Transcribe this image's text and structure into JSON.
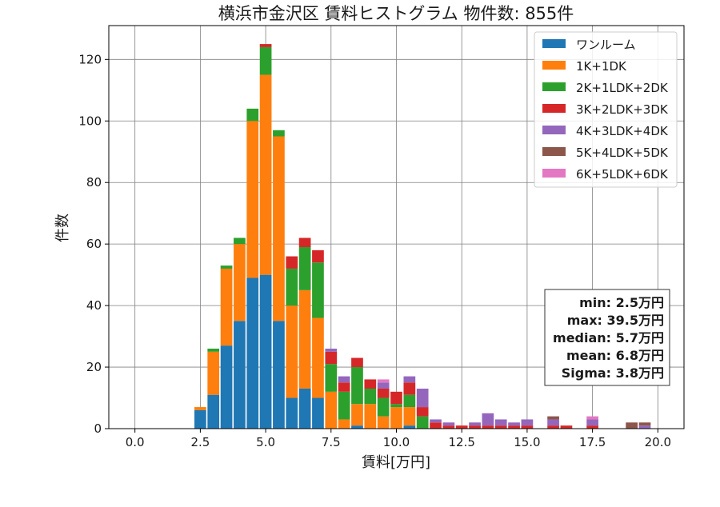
{
  "chart_data": {
    "type": "bar",
    "stacked": true,
    "title": "横浜市金沢区 賃料ヒストグラム 物件数: 855件",
    "xlabel": "賃料[万円]",
    "ylabel": "件数",
    "xlim": [
      -1.0,
      21.0
    ],
    "ylim": [
      0,
      131
    ],
    "bin_width": 0.5,
    "x_ticks": [
      0.0,
      2.5,
      5.0,
      7.5,
      10.0,
      12.5,
      15.0,
      17.5,
      20.0
    ],
    "x_tick_labels": [
      "0.0",
      "2.5",
      "5.0",
      "7.5",
      "10.0",
      "12.5",
      "15.0",
      "17.5",
      "20.0"
    ],
    "y_ticks": [
      0,
      20,
      40,
      60,
      80,
      100,
      120
    ],
    "y_tick_labels": [
      "0",
      "20",
      "40",
      "60",
      "80",
      "100",
      "120"
    ],
    "grid": true,
    "legend_position": "top-right",
    "bin_centers": [
      2.5,
      3.0,
      3.5,
      4.0,
      4.5,
      5.0,
      5.5,
      6.0,
      6.5,
      7.0,
      7.5,
      8.0,
      8.5,
      9.0,
      9.5,
      10.0,
      10.5,
      11.0,
      11.5,
      12.0,
      12.5,
      13.0,
      13.5,
      14.0,
      14.5,
      15.0,
      15.5,
      16.0,
      16.5,
      17.0,
      17.5,
      18.0,
      18.5,
      19.0,
      19.5
    ],
    "series": [
      {
        "name": "ワンルーム",
        "color": "#1f77b4",
        "values": [
          6,
          11,
          27,
          35,
          49,
          50,
          35,
          10,
          13,
          10,
          0,
          0,
          1,
          0,
          0,
          0,
          1,
          0,
          0,
          0,
          0,
          0,
          0,
          0,
          0,
          0,
          0,
          0,
          0,
          0,
          0,
          0,
          0,
          0,
          0
        ]
      },
      {
        "name": "1K+1DK",
        "color": "#ff7f0e",
        "values": [
          1,
          14,
          25,
          25,
          51,
          65,
          60,
          30,
          32,
          26,
          12,
          3,
          7,
          8,
          4,
          7,
          6,
          0,
          0,
          0,
          0,
          0,
          0,
          0,
          0,
          0,
          0,
          0,
          0,
          0,
          0,
          0,
          0,
          0,
          0
        ]
      },
      {
        "name": "2K+1LDK+2DK",
        "color": "#2ca02c",
        "values": [
          0,
          1,
          1,
          2,
          4,
          9,
          2,
          12,
          14,
          18,
          9,
          9,
          12,
          5,
          6,
          1,
          4,
          4,
          0,
          0,
          0,
          0,
          0,
          0,
          0,
          0,
          0,
          0,
          0,
          0,
          0,
          0,
          0,
          0,
          0
        ]
      },
      {
        "name": "3K+2LDK+3DK",
        "color": "#d62728",
        "values": [
          0,
          0,
          0,
          0,
          0,
          1,
          0,
          4,
          3,
          4,
          4,
          3,
          3,
          3,
          3,
          4,
          4,
          3,
          2,
          1,
          1,
          1,
          1,
          1,
          1,
          1,
          0,
          1,
          1,
          0,
          1,
          0,
          0,
          0,
          0
        ]
      },
      {
        "name": "4K+3LDK+4DK",
        "color": "#9467bd",
        "values": [
          0,
          0,
          0,
          0,
          0,
          0,
          0,
          0,
          0,
          0,
          1,
          2,
          0,
          0,
          2,
          0,
          2,
          6,
          1,
          1,
          0,
          1,
          4,
          2,
          1,
          2,
          0,
          2,
          0,
          0,
          2,
          0,
          0,
          0,
          1
        ]
      },
      {
        "name": "5K+4LDK+5DK",
        "color": "#8c564b",
        "values": [
          0,
          0,
          0,
          0,
          0,
          0,
          0,
          0,
          0,
          0,
          0,
          0,
          0,
          0,
          0,
          0,
          0,
          0,
          0,
          0,
          0,
          0,
          0,
          0,
          0,
          0,
          0,
          1,
          0,
          0,
          0,
          0,
          0,
          2,
          1
        ]
      },
      {
        "name": "6K+5LDK+6DK",
        "color": "#e377c2",
        "values": [
          0,
          0,
          0,
          0,
          0,
          0,
          0,
          0,
          0,
          0,
          0,
          0,
          0,
          0,
          1,
          0,
          0,
          0,
          0,
          0,
          0,
          0,
          0,
          0,
          0,
          0,
          0,
          0,
          0,
          0,
          1,
          0,
          0,
          0,
          0
        ]
      }
    ],
    "annotations": [
      "min: 2.5万円",
      "max: 39.5万円",
      "median: 5.7万円",
      "mean: 6.8万円",
      "Sigma: 3.8万円"
    ]
  }
}
